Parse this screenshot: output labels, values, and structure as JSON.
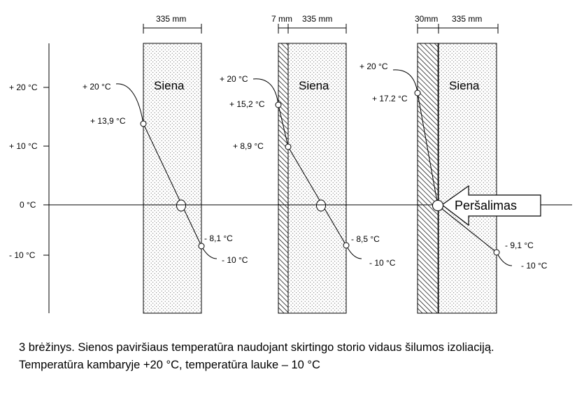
{
  "axis": {
    "ticks": [
      "+ 20 °C",
      "+ 10 °C",
      "0 °C",
      "- 10 °C"
    ]
  },
  "panels": [
    {
      "dims": [
        "335 mm"
      ],
      "wall_label": "Siena",
      "labels": [
        "+ 20 °C",
        "+ 13,9 °C",
        "- 8,1 °C",
        "- 10 °C"
      ]
    },
    {
      "dims": [
        "7 mm",
        "335 mm"
      ],
      "wall_label": "Siena",
      "labels": [
        "+ 20 °C",
        "+ 15,2 °C",
        "+ 8,9 °C",
        "- 8,5 °C",
        "- 10 °C"
      ]
    },
    {
      "dims": [
        "30mm",
        "335 mm"
      ],
      "wall_label": "Siena",
      "labels": [
        "+ 20 °C",
        "+ 17.2 °C",
        "- 9,1 °C",
        "- 10 °C"
      ],
      "arrow_label": "Peršalimas"
    }
  ],
  "caption": {
    "line1": "3 brėžinys. Sienos paviršiaus temperatūra naudojant skirtingo storio vidaus šilumos izoliaciją.",
    "line2": "Temperatūra kambaryje  +20 °C, temperatūra lauke  – 10 °C"
  }
}
